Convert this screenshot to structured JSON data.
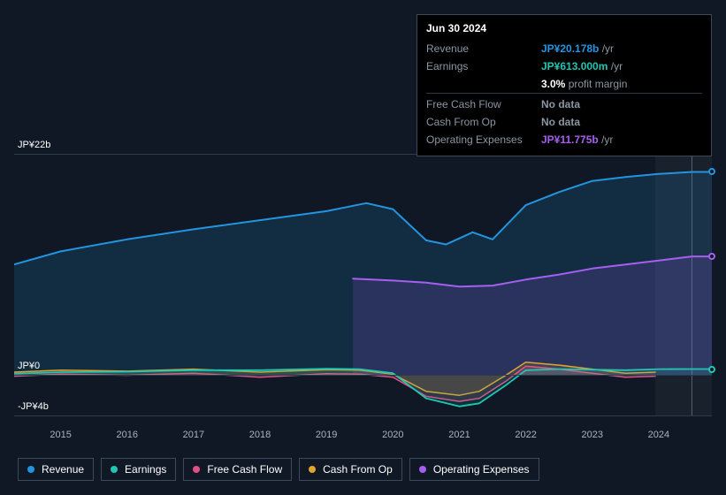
{
  "background_color": "#0f1824",
  "tooltip": {
    "date": "Jun 30 2024",
    "rows": [
      {
        "label": "Revenue",
        "value": "JP¥20.178b",
        "suffix": "/yr",
        "color": "#2394df",
        "divider": false
      },
      {
        "label": "Earnings",
        "value": "JP¥613.000m",
        "suffix": "/yr",
        "color": "#1fc7b2",
        "divider": false
      },
      {
        "label": "",
        "value": "3.0%",
        "suffix": "profit margin",
        "color": "#ffffff",
        "divider": false
      },
      {
        "label": "Free Cash Flow",
        "value": "No data",
        "suffix": "",
        "color": "#8a96a3",
        "divider": true
      },
      {
        "label": "Cash From Op",
        "value": "No data",
        "suffix": "",
        "color": "#8a96a3",
        "divider": false
      },
      {
        "label": "Operating Expenses",
        "value": "JP¥11.775b",
        "suffix": "/yr",
        "color": "#a65ff0",
        "divider": false
      }
    ]
  },
  "chart": {
    "type": "area",
    "x_years": [
      2015,
      2016,
      2017,
      2018,
      2019,
      2020,
      2021,
      2022,
      2023,
      2024
    ],
    "x_range": [
      2014.3,
      2024.8
    ],
    "y_range": [
      -4,
      22
    ],
    "y_ticks": [
      {
        "v": 22,
        "label": "JP¥22b"
      },
      {
        "v": 0,
        "label": "JP¥0"
      },
      {
        "v": -4,
        "label": "-JP¥4b"
      }
    ],
    "cursor_x": 2024.5,
    "shade_from_x": 2023.95,
    "grid_color": "#2c3a4a",
    "tick_font_color": "#a8b4c0",
    "series": [
      {
        "key": "revenue",
        "label": "Revenue",
        "color": "#2394df",
        "fill_opacity": 0.16,
        "stroke_width": 2,
        "fill_to": 0,
        "end_dot": true,
        "points": [
          [
            2014.3,
            11.0
          ],
          [
            2015,
            12.3
          ],
          [
            2016,
            13.5
          ],
          [
            2017,
            14.5
          ],
          [
            2018,
            15.4
          ],
          [
            2019,
            16.3
          ],
          [
            2019.6,
            17.1
          ],
          [
            2020,
            16.5
          ],
          [
            2020.5,
            13.4
          ],
          [
            2020.8,
            13.0
          ],
          [
            2021.2,
            14.2
          ],
          [
            2021.5,
            13.5
          ],
          [
            2022,
            16.9
          ],
          [
            2022.5,
            18.2
          ],
          [
            2023,
            19.3
          ],
          [
            2023.5,
            19.7
          ],
          [
            2024,
            20.0
          ],
          [
            2024.5,
            20.2
          ],
          [
            2024.8,
            20.2
          ]
        ]
      },
      {
        "key": "opex",
        "label": "Operating Expenses",
        "color": "#a65ff0",
        "fill_opacity": 0.16,
        "stroke_width": 2,
        "fill_to": 0,
        "end_dot": true,
        "start_x": 2019.4,
        "points": [
          [
            2019.4,
            9.6
          ],
          [
            2020,
            9.4
          ],
          [
            2020.5,
            9.2
          ],
          [
            2021,
            8.8
          ],
          [
            2021.5,
            8.9
          ],
          [
            2022,
            9.5
          ],
          [
            2022.5,
            10.0
          ],
          [
            2023,
            10.6
          ],
          [
            2023.5,
            11.0
          ],
          [
            2024,
            11.4
          ],
          [
            2024.5,
            11.8
          ],
          [
            2024.8,
            11.8
          ]
        ]
      },
      {
        "key": "fcf",
        "label": "Free Cash Flow",
        "color": "#e14f8b",
        "fill_opacity": 0.18,
        "stroke_width": 1.5,
        "fill_to": 0,
        "end_dot": false,
        "points": [
          [
            2014.3,
            -0.1
          ],
          [
            2015,
            0.1
          ],
          [
            2016,
            0.0
          ],
          [
            2017,
            0.2
          ],
          [
            2018,
            -0.2
          ],
          [
            2019,
            0.15
          ],
          [
            2019.5,
            0.1
          ],
          [
            2020,
            -0.2
          ],
          [
            2020.5,
            -2.1
          ],
          [
            2021,
            -2.6
          ],
          [
            2021.3,
            -2.3
          ],
          [
            2021.7,
            -0.6
          ],
          [
            2022,
            0.9
          ],
          [
            2022.5,
            0.6
          ],
          [
            2023,
            0.2
          ],
          [
            2023.5,
            -0.2
          ],
          [
            2023.95,
            -0.1
          ]
        ]
      },
      {
        "key": "cfo",
        "label": "Cash From Op",
        "color": "#e0a42f",
        "fill_opacity": 0.14,
        "stroke_width": 1.5,
        "fill_to": 0,
        "end_dot": false,
        "points": [
          [
            2014.3,
            0.3
          ],
          [
            2015,
            0.5
          ],
          [
            2016,
            0.4
          ],
          [
            2017,
            0.6
          ],
          [
            2018,
            0.3
          ],
          [
            2019,
            0.55
          ],
          [
            2019.5,
            0.5
          ],
          [
            2020,
            0.1
          ],
          [
            2020.5,
            -1.6
          ],
          [
            2021,
            -2.0
          ],
          [
            2021.3,
            -1.6
          ],
          [
            2021.7,
            0.0
          ],
          [
            2022,
            1.3
          ],
          [
            2022.5,
            1.0
          ],
          [
            2023,
            0.6
          ],
          [
            2023.5,
            0.2
          ],
          [
            2023.95,
            0.3
          ]
        ]
      },
      {
        "key": "earnings",
        "label": "Earnings",
        "color": "#1fc7b2",
        "fill_opacity": 0.14,
        "stroke_width": 1.8,
        "fill_to": 0,
        "end_dot": true,
        "points": [
          [
            2014.3,
            0.15
          ],
          [
            2015,
            0.3
          ],
          [
            2016,
            0.35
          ],
          [
            2017,
            0.5
          ],
          [
            2018,
            0.5
          ],
          [
            2019,
            0.65
          ],
          [
            2019.5,
            0.6
          ],
          [
            2020,
            0.2
          ],
          [
            2020.5,
            -2.3
          ],
          [
            2021,
            -3.1
          ],
          [
            2021.3,
            -2.8
          ],
          [
            2021.7,
            -1.0
          ],
          [
            2022,
            0.5
          ],
          [
            2022.5,
            0.6
          ],
          [
            2023,
            0.55
          ],
          [
            2023.5,
            0.5
          ],
          [
            2024,
            0.6
          ],
          [
            2024.5,
            0.61
          ],
          [
            2024.8,
            0.61
          ]
        ]
      }
    ],
    "legend_order": [
      "revenue",
      "earnings",
      "fcf",
      "cfo",
      "opex"
    ]
  }
}
